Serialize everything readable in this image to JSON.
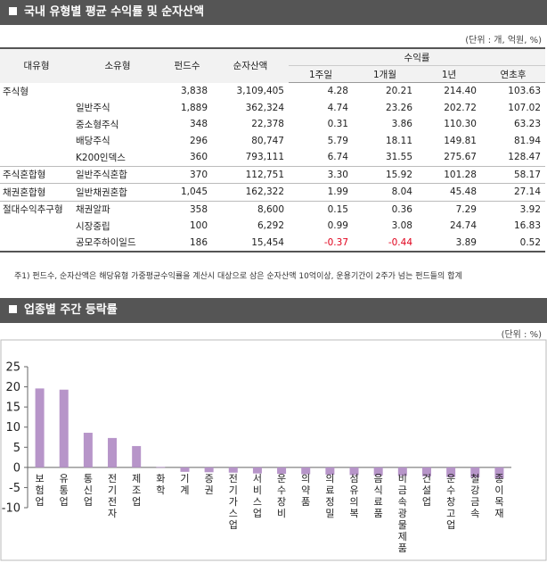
{
  "section1": {
    "title": "국내 유형별 평균 수익률 및 순자산액",
    "unit": "(단위 : 개, 억원, %)",
    "headers": {
      "category": "대유형",
      "subcategory": "소유형",
      "funds": "펀드수",
      "net_assets": "순자산액",
      "returns": "수익률",
      "w1": "1주일",
      "m1": "1개월",
      "y1": "1년",
      "ytd": "연초후"
    },
    "rows": [
      {
        "cat": "주식형",
        "sub": "",
        "funds": "3,838",
        "assets": "3,109,405",
        "w1": "4.28",
        "m1": "20.21",
        "y1": "214.40",
        "ytd": "103.63"
      },
      {
        "cat": "",
        "sub": "일반주식",
        "funds": "1,889",
        "assets": "362,324",
        "w1": "4.74",
        "m1": "23.26",
        "y1": "202.72",
        "ytd": "107.02"
      },
      {
        "cat": "",
        "sub": "중소형주식",
        "funds": "348",
        "assets": "22,378",
        "w1": "0.31",
        "m1": "3.86",
        "y1": "110.30",
        "ytd": "63.23"
      },
      {
        "cat": "",
        "sub": "배당주식",
        "funds": "296",
        "assets": "80,747",
        "w1": "5.79",
        "m1": "18.11",
        "y1": "149.81",
        "ytd": "81.94"
      },
      {
        "cat": "",
        "sub": "K200인덱스",
        "funds": "360",
        "assets": "793,111",
        "w1": "6.74",
        "m1": "31.55",
        "y1": "275.67",
        "ytd": "128.47"
      },
      {
        "cat": "주식혼합형",
        "sub": "일반주식혼합",
        "funds": "370",
        "assets": "112,751",
        "w1": "3.30",
        "m1": "15.92",
        "y1": "101.28",
        "ytd": "58.17"
      },
      {
        "cat": "채권혼합형",
        "sub": "일반채권혼합",
        "funds": "1,045",
        "assets": "162,322",
        "w1": "1.99",
        "m1": "8.04",
        "y1": "45.48",
        "ytd": "27.14"
      },
      {
        "cat": "절대수익추구형",
        "sub": "채권알파",
        "funds": "358",
        "assets": "8,600",
        "w1": "0.15",
        "m1": "0.36",
        "y1": "7.29",
        "ytd": "3.92"
      },
      {
        "cat": "",
        "sub": "시장중립",
        "funds": "100",
        "assets": "6,292",
        "w1": "0.99",
        "m1": "3.08",
        "y1": "24.74",
        "ytd": "16.83"
      },
      {
        "cat": "",
        "sub": "공모주하이일드",
        "funds": "186",
        "assets": "15,454",
        "w1": "-0.37",
        "m1": "-0.44",
        "y1": "3.89",
        "ytd": "0.52"
      }
    ],
    "note": "주1) 펀드수, 순자산액은 해당유형 가중평균수익률을 계산시 대상으로 삼은 순자산액 10억이상, 운용기간이 2주가 넘는 펀드들의 합계"
  },
  "section2": {
    "title": "업종별 주간 등락률",
    "unit": "(단위 : %)"
  },
  "chart_data": {
    "type": "bar",
    "title": "",
    "xlabel": "",
    "ylabel": "",
    "ylim": [
      -10,
      25
    ],
    "yticks": [
      -10,
      -5,
      0,
      5,
      10,
      15,
      20,
      25
    ],
    "grid": false,
    "categories": [
      "보험업",
      "유통업",
      "통신업",
      "전기전자",
      "제조업",
      "화학",
      "기계",
      "증권",
      "전기가스업",
      "서비스업",
      "운수장비",
      "의약품",
      "의료정밀",
      "섬유의복",
      "음식료품",
      "비금속광물제품",
      "건설업",
      "운수창고업",
      "철강금속",
      "종이목재"
    ],
    "values": [
      19.6,
      19.3,
      8.6,
      7.3,
      5.3,
      0.1,
      -1.1,
      -1.2,
      -1.3,
      -1.5,
      -1.6,
      -1.7,
      -1.8,
      -1.9,
      -2.0,
      -2.1,
      -2.2,
      -2.4,
      -2.5,
      -2.7
    ],
    "bar_color": "#b795c9"
  }
}
